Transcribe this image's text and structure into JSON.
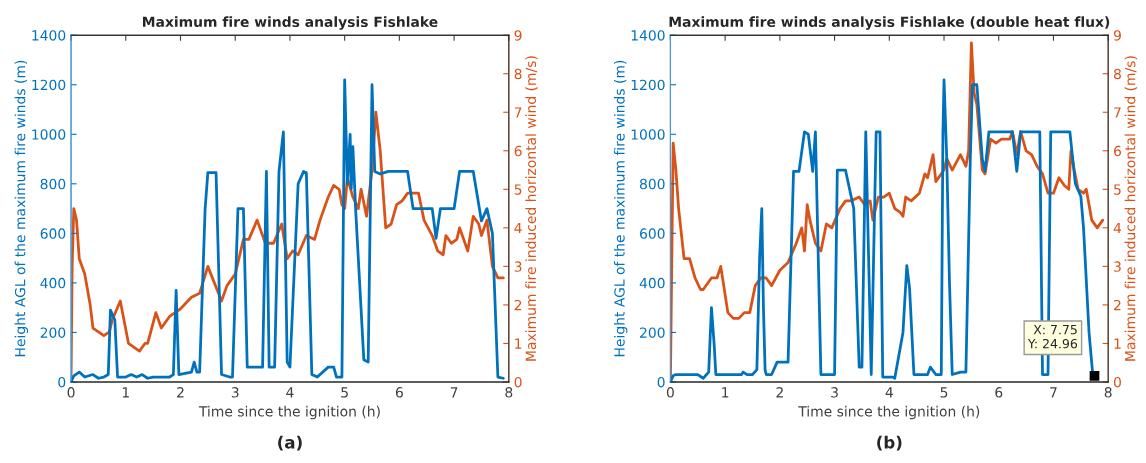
{
  "chart_data": [
    {
      "type": "line",
      "title": "Maximum fire winds analysis Fishlake",
      "xlabel": "Time since the ignition (h)",
      "ylabel": "Height AGL of the maximum fire winds (m)",
      "y2label": "Maximum fire induced horizontal wind (m/s)",
      "xlim": [
        0,
        8
      ],
      "xticks": [
        0,
        1,
        2,
        3,
        4,
        5,
        6,
        7,
        8
      ],
      "ylim": [
        0,
        1400
      ],
      "yticks": [
        0,
        200,
        400,
        600,
        800,
        1000,
        1200,
        1400
      ],
      "y2lim": [
        0,
        9
      ],
      "y2ticks": [
        0,
        1,
        2,
        3,
        4,
        5,
        6,
        7,
        8,
        9
      ],
      "grid": false,
      "legend": false,
      "marker": "none",
      "line_style": "solid",
      "series": [
        {
          "color": "#0072bd",
          "axis": "y",
          "x": [
            0,
            0.05,
            0.15,
            0.25,
            0.4,
            0.5,
            0.6,
            0.68,
            0.72,
            0.8,
            0.85,
            1.0,
            1.1,
            1.2,
            1.3,
            1.4,
            1.5,
            1.8,
            1.87,
            1.92,
            1.97,
            2.2,
            2.25,
            2.3,
            2.35,
            2.45,
            2.5,
            2.65,
            2.75,
            2.9,
            2.95,
            3.05,
            3.15,
            3.22,
            3.5,
            3.57,
            3.62,
            3.72,
            3.8,
            3.88,
            3.95,
            4.0,
            4.15,
            4.25,
            4.3,
            4.4,
            4.5,
            4.7,
            4.8,
            4.85,
            4.95,
            5.0,
            5.05,
            5.1,
            5.12,
            5.15,
            5.2,
            5.35,
            5.43,
            5.5,
            5.55,
            5.65,
            5.8,
            6.15,
            6.25,
            6.6,
            6.67,
            6.75,
            7.0,
            7.1,
            7.35,
            7.5,
            7.6,
            7.7,
            7.8,
            7.9
          ],
          "values": [
            0,
            25,
            40,
            20,
            30,
            15,
            20,
            30,
            290,
            250,
            20,
            20,
            30,
            20,
            30,
            15,
            20,
            20,
            30,
            370,
            30,
            40,
            80,
            40,
            40,
            700,
            845,
            845,
            30,
            20,
            20,
            700,
            700,
            60,
            60,
            850,
            60,
            60,
            850,
            1010,
            80,
            60,
            800,
            850,
            845,
            30,
            20,
            60,
            60,
            20,
            20,
            1220,
            800,
            1000,
            780,
            950,
            700,
            90,
            80,
            1200,
            850,
            840,
            850,
            850,
            700,
            700,
            580,
            700,
            700,
            850,
            850,
            650,
            700,
            600,
            20,
            15
          ]
        },
        {
          "color": "#d95319",
          "axis": "y2",
          "x": [
            0,
            0.02,
            0.05,
            0.1,
            0.15,
            0.25,
            0.35,
            0.4,
            0.5,
            0.6,
            0.7,
            0.75,
            0.9,
            1.05,
            1.25,
            1.35,
            1.4,
            1.55,
            1.65,
            1.8,
            2.0,
            2.2,
            2.35,
            2.5,
            2.75,
            2.85,
            3.0,
            3.15,
            3.25,
            3.4,
            3.55,
            3.7,
            3.85,
            3.95,
            4.05,
            4.15,
            4.3,
            4.45,
            4.55,
            4.7,
            4.8,
            4.9,
            4.95,
            5.0,
            5.05,
            5.15,
            5.25,
            5.3,
            5.4,
            5.5,
            5.57,
            5.65,
            5.75,
            5.85,
            5.95,
            6.05,
            6.15,
            6.25,
            6.35,
            6.45,
            6.6,
            6.7,
            6.8,
            6.85,
            6.95,
            7.05,
            7.1,
            7.15,
            7.25,
            7.35,
            7.45,
            7.5,
            7.6,
            7.7,
            7.8,
            7.9
          ],
          "values": [
            0,
            3.0,
            4.5,
            4.2,
            3.2,
            2.8,
            2.0,
            1.4,
            1.3,
            1.2,
            1.3,
            1.6,
            2.1,
            1.0,
            0.8,
            1.0,
            1.0,
            1.8,
            1.4,
            1.7,
            1.9,
            2.2,
            2.3,
            3.0,
            2.1,
            2.5,
            2.8,
            3.7,
            3.7,
            4.2,
            3.6,
            3.6,
            4.1,
            3.2,
            3.4,
            3.3,
            3.8,
            3.7,
            4.2,
            4.8,
            5.1,
            5.0,
            4.6,
            4.5,
            5.3,
            4.8,
            4.5,
            5.0,
            4.3,
            5.5,
            7.0,
            6.0,
            4.0,
            4.1,
            4.6,
            4.7,
            4.9,
            4.9,
            4.9,
            4.2,
            3.8,
            3.4,
            3.3,
            3.8,
            3.6,
            3.7,
            4.0,
            3.8,
            3.4,
            4.3,
            4.1,
            3.8,
            4.2,
            3.0,
            2.7,
            2.7
          ]
        }
      ],
      "annotations": [
        "(a)"
      ]
    },
    {
      "type": "line",
      "title": "Maximum fire winds analysis Fishlake (double heat flux)",
      "xlabel": "Time since the ignition (h)",
      "ylabel": "Height AGL of the maximum fire winds (m)",
      "y2label": "Maximum fire induced horizontal wind (m/s)",
      "xlim": [
        0,
        8
      ],
      "xticks": [
        0,
        1,
        2,
        3,
        4,
        5,
        6,
        7,
        8
      ],
      "ylim": [
        0,
        1400
      ],
      "yticks": [
        0,
        200,
        400,
        600,
        800,
        1000,
        1200,
        1400
      ],
      "y2lim": [
        0,
        9
      ],
      "y2ticks": [
        0,
        1,
        2,
        3,
        4,
        5,
        6,
        7,
        8,
        9
      ],
      "grid": false,
      "legend": false,
      "marker": "none",
      "line_style": "solid",
      "series": [
        {
          "color": "#0072bd",
          "axis": "y",
          "x": [
            0,
            0.05,
            0.1,
            0.5,
            0.6,
            0.7,
            0.73,
            0.75,
            0.8,
            0.83,
            1.0,
            1.3,
            1.33,
            1.4,
            1.5,
            1.58,
            1.63,
            1.67,
            1.7,
            1.73,
            1.75,
            1.85,
            1.95,
            2.0,
            2.15,
            2.25,
            2.35,
            2.45,
            2.52,
            2.6,
            2.65,
            2.75,
            3.0,
            3.05,
            3.2,
            3.35,
            3.45,
            3.5,
            3.57,
            3.67,
            3.76,
            3.83,
            3.88,
            4.06,
            4.1,
            4.25,
            4.32,
            4.37,
            4.45,
            4.7,
            4.75,
            4.85,
            4.95,
            4.98,
            5.0,
            5.05,
            5.1,
            5.15,
            5.3,
            5.4,
            5.48,
            5.52,
            5.6,
            5.7,
            5.75,
            5.82,
            6.25,
            6.33,
            6.4,
            6.75,
            6.8,
            6.9,
            6.95,
            7.3,
            7.4,
            7.5,
            7.55,
            7.65,
            7.72,
            7.8
          ],
          "values": [
            0,
            25,
            30,
            30,
            15,
            40,
            200,
            300,
            150,
            30,
            30,
            30,
            40,
            30,
            30,
            50,
            500,
            700,
            300,
            50,
            30,
            30,
            80,
            80,
            80,
            850,
            850,
            1010,
            1000,
            850,
            1010,
            30,
            30,
            855,
            855,
            700,
            60,
            60,
            1010,
            30,
            1010,
            1010,
            20,
            20,
            15,
            200,
            470,
            380,
            30,
            30,
            60,
            30,
            30,
            1000,
            1220,
            900,
            400,
            30,
            40,
            40,
            900,
            1200,
            1200,
            900,
            850,
            1010,
            1010,
            850,
            1010,
            1010,
            30,
            30,
            1010,
            1010,
            800,
            750,
            620,
            200,
            25,
            25
          ]
        },
        {
          "color": "#d95319",
          "axis": "y2",
          "x": [
            0,
            0.02,
            0.05,
            0.1,
            0.15,
            0.25,
            0.35,
            0.45,
            0.55,
            0.6,
            0.75,
            0.85,
            0.92,
            1.05,
            1.15,
            1.25,
            1.35,
            1.45,
            1.55,
            1.65,
            1.75,
            1.85,
            2.0,
            2.15,
            2.3,
            2.4,
            2.45,
            2.5,
            2.55,
            2.65,
            2.75,
            2.85,
            2.95,
            3.1,
            3.2,
            3.3,
            3.45,
            3.55,
            3.65,
            3.7,
            3.8,
            3.9,
            4.0,
            4.1,
            4.2,
            4.25,
            4.3,
            4.4,
            4.55,
            4.65,
            4.7,
            4.8,
            4.85,
            5.0,
            5.05,
            5.15,
            5.3,
            5.4,
            5.45,
            5.5,
            5.55,
            5.6,
            5.7,
            5.75,
            5.85,
            5.95,
            6.05,
            6.2,
            6.25,
            6.33,
            6.4,
            6.5,
            6.6,
            6.7,
            6.8,
            6.9,
            7.0,
            7.1,
            7.2,
            7.28,
            7.32,
            7.38,
            7.45,
            7.55,
            7.6,
            7.7,
            7.8,
            7.9
          ],
          "values": [
            0,
            2.5,
            6.2,
            5.5,
            4.5,
            3.2,
            3.2,
            2.7,
            2.4,
            2.4,
            2.7,
            2.7,
            3.0,
            1.8,
            1.65,
            1.65,
            1.8,
            1.8,
            2.5,
            2.7,
            2.7,
            2.5,
            2.9,
            3.1,
            3.6,
            4.0,
            3.4,
            4.6,
            4.2,
            3.6,
            3.4,
            4.1,
            4.0,
            4.5,
            4.7,
            4.7,
            4.8,
            4.6,
            4.7,
            4.2,
            4.8,
            4.8,
            4.9,
            4.5,
            4.4,
            4.3,
            4.8,
            4.7,
            4.9,
            5.4,
            5.3,
            5.9,
            5.2,
            5.5,
            5.8,
            5.5,
            5.9,
            5.6,
            6.0,
            8.8,
            7.5,
            7.2,
            5.5,
            5.4,
            6.3,
            6.2,
            6.3,
            6.3,
            6.5,
            5.9,
            6.5,
            6.0,
            5.9,
            5.6,
            5.4,
            4.9,
            4.9,
            5.3,
            5.1,
            5.0,
            6.0,
            5.5,
            5.0,
            4.9,
            5.0,
            4.2,
            4.0,
            4.2
          ]
        }
      ],
      "annotations": [
        "(b)",
        {
          "text": "X: 7.75\nY: 24.96",
          "x": 7.75,
          "y": 24.96
        }
      ]
    }
  ]
}
